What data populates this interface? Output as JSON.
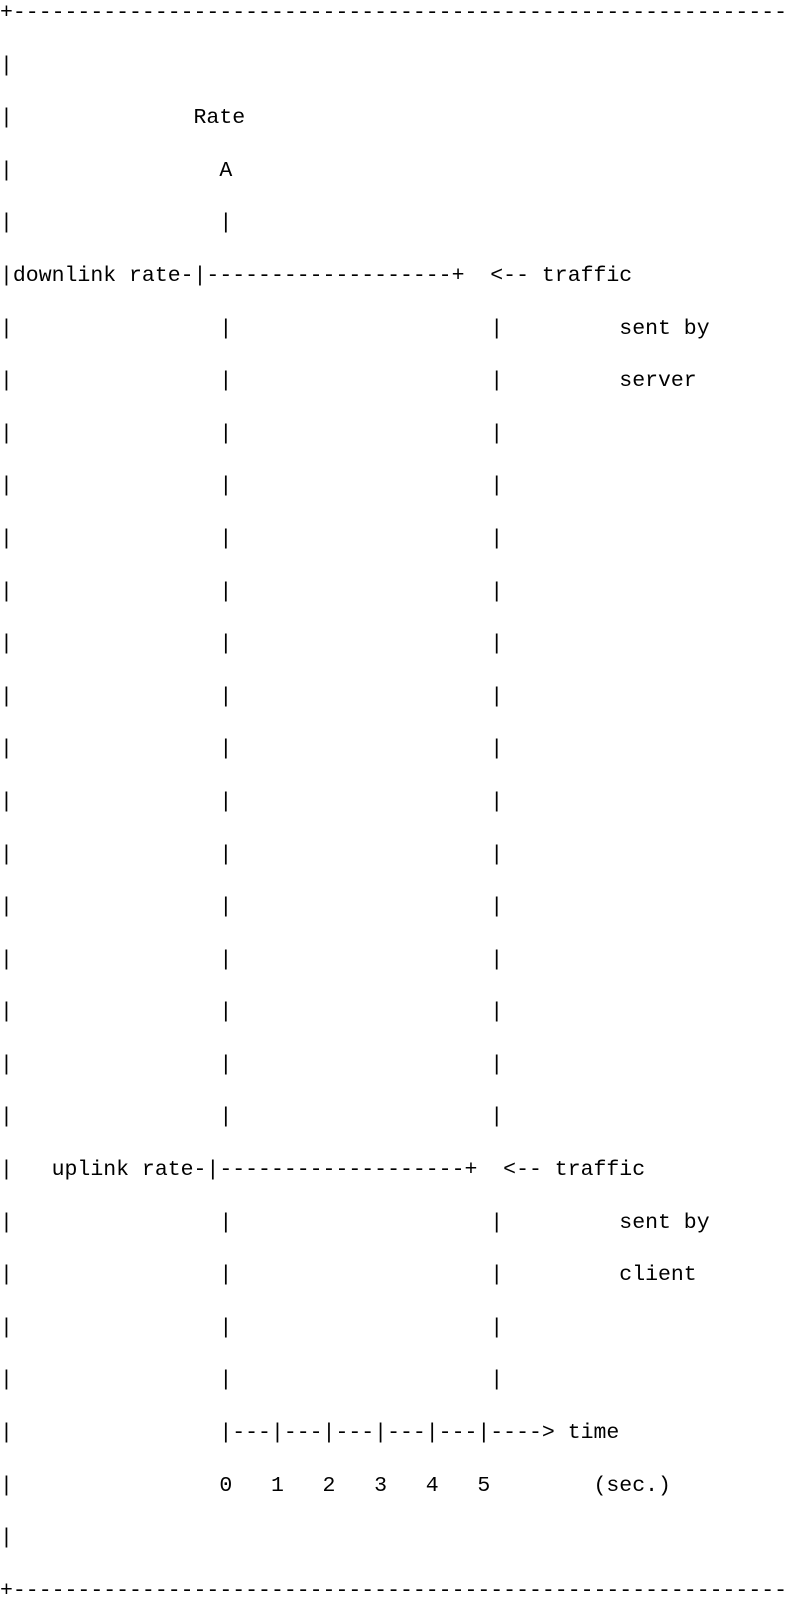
{
  "diagram_lines": [
    "+------------------------------------------------------------",
    "|",
    "|              Rate",
    "|                A",
    "|                |",
    "|downlink rate-|-------------------+  <-- traffic",
    "|                |                    |         sent by",
    "|                |                    |         server",
    "|                |                    |",
    "|                |                    |",
    "|                |                    |",
    "|                |                    |",
    "|                |                    |",
    "|                |                    |",
    "|                |                    |",
    "|                |                    |",
    "|                |                    |",
    "|                |                    |",
    "|                |                    |",
    "|                |                    |",
    "|                |                    |",
    "|                |                    |",
    "|   uplink rate-|-------------------+  <-- traffic",
    "|                |                    |         sent by",
    "|                |                    |         client",
    "|                |                    |",
    "|                |                    |",
    "|                |---|---|---|---|---|----> time",
    "|                0   1   2   3   4   5        (sec.)",
    "|",
    "+------------------------------------------------------------"
  ]
}
